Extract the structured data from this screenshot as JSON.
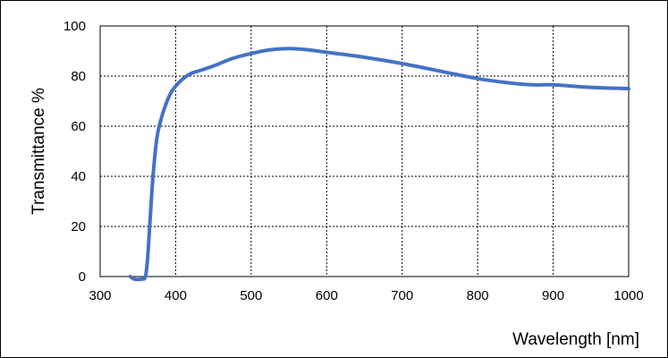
{
  "chart_data": {
    "type": "line",
    "xlabel": "Wavelength [nm]",
    "ylabel": "Transmittance %",
    "xlim": [
      300,
      1000
    ],
    "ylim": [
      0,
      100
    ],
    "xticks": [
      300,
      400,
      500,
      600,
      700,
      800,
      900,
      1000
    ],
    "yticks": [
      0,
      20,
      40,
      60,
      80,
      100
    ],
    "grid": true,
    "series": [
      {
        "color": "#4472C4",
        "x": [
          340,
          345,
          355,
          360,
          363,
          366,
          370,
          375,
          380,
          385,
          390,
          395,
          400,
          410,
          420,
          430,
          450,
          475,
          500,
          525,
          550,
          575,
          600,
          650,
          700,
          750,
          800,
          850,
          875,
          900,
          950,
          1000
        ],
        "y": [
          0,
          -1,
          -1,
          0,
          8,
          22,
          40,
          55,
          62,
          67,
          71,
          74,
          76,
          79,
          81,
          82,
          84,
          87,
          89,
          90.5,
          91,
          90.5,
          89.5,
          87.5,
          85,
          82,
          79,
          77,
          76.5,
          76.5,
          75.5,
          75
        ]
      }
    ]
  }
}
